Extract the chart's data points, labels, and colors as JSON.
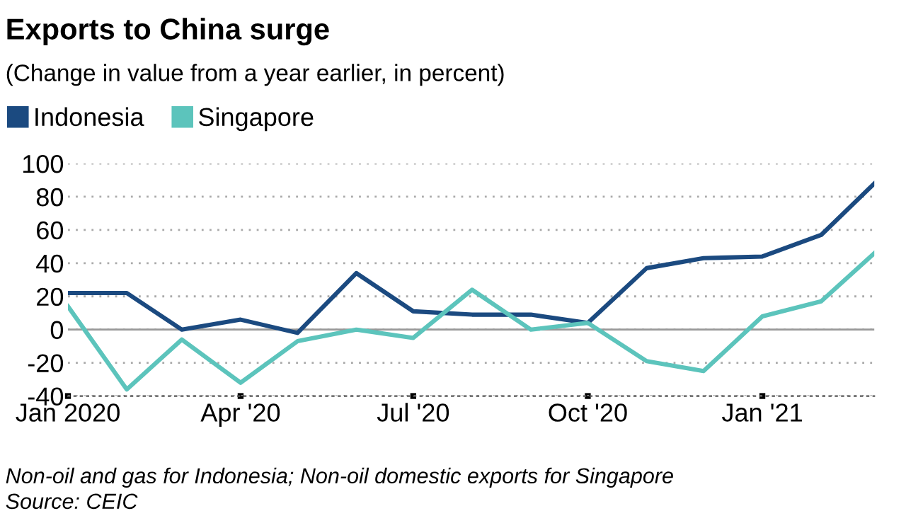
{
  "chart_data": {
    "type": "line",
    "title": "Exports to China surge",
    "subtitle": "(Change in value from a year earlier, in percent)",
    "x": [
      "2020-01",
      "2020-02",
      "2020-03",
      "2020-04",
      "2020-05",
      "2020-06",
      "2020-07",
      "2020-08",
      "2020-09",
      "2020-10",
      "2020-11",
      "2020-12",
      "2021-01",
      "2021-02",
      "2021-03"
    ],
    "series": [
      {
        "name": "Indonesia",
        "color": "#1b4a80",
        "values": [
          22,
          22,
          0,
          6,
          -2,
          34,
          11,
          9,
          9,
          4,
          37,
          43,
          44,
          57,
          88
        ]
      },
      {
        "name": "Singapore",
        "color": "#5cc4bc",
        "values": [
          14,
          -36,
          -6,
          -32,
          -7,
          0,
          -5,
          24,
          0,
          4,
          -19,
          -25,
          8,
          17,
          46
        ]
      }
    ],
    "xlim": [
      "2020-01",
      "2021-03"
    ],
    "xticks": [
      {
        "value": "2020-01",
        "label": "Jan 2020"
      },
      {
        "value": "2020-04",
        "label": "Apr '20"
      },
      {
        "value": "2020-07",
        "label": "Jul '20"
      },
      {
        "value": "2020-10",
        "label": "Oct '20"
      },
      {
        "value": "2021-01",
        "label": "Jan '21"
      }
    ],
    "ylim": [
      -40,
      100
    ],
    "yticks": [
      -40,
      -20,
      0,
      20,
      40,
      60,
      80,
      100
    ],
    "ref_lines": [
      {
        "axis": "y",
        "value": 0,
        "color": "#999999"
      }
    ],
    "grid": "y",
    "legend": "top left",
    "marker": "none",
    "line_style": "solid",
    "annotations": [
      "Non-oil and gas for Indonesia; Non-oil domestic exports for Singapore",
      "Source: CEIC"
    ]
  }
}
